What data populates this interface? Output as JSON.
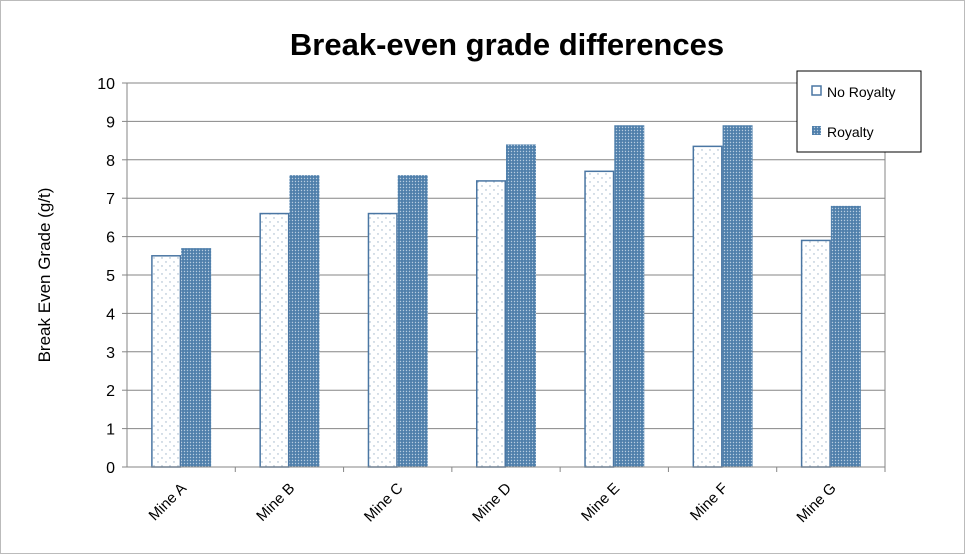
{
  "chart_data": {
    "type": "bar",
    "title": "Break-even grade differences",
    "xlabel": "",
    "ylabel": "Break Even Grade (g/t)",
    "ylim": [
      0,
      10
    ],
    "yticks": [
      0,
      1,
      2,
      3,
      4,
      5,
      6,
      7,
      8,
      9,
      10
    ],
    "grid": true,
    "legend_position": "top-right",
    "categories": [
      "Mine A",
      "Mine B",
      "Mine C",
      "Mine D",
      "Mine E",
      "Mine F",
      "Mine G"
    ],
    "series": [
      {
        "name": "No Royalty",
        "values": [
          5.5,
          6.6,
          6.6,
          7.45,
          7.7,
          8.35,
          5.9
        ],
        "color": "#ffffff",
        "border": "#4a76a3",
        "pattern": "sparse-dots"
      },
      {
        "name": "Royalty",
        "values": [
          5.7,
          7.6,
          7.6,
          8.4,
          8.9,
          8.9,
          6.8
        ],
        "color": "#5b87b0",
        "border": "#5b87b0",
        "pattern": "dense-dots"
      }
    ]
  }
}
